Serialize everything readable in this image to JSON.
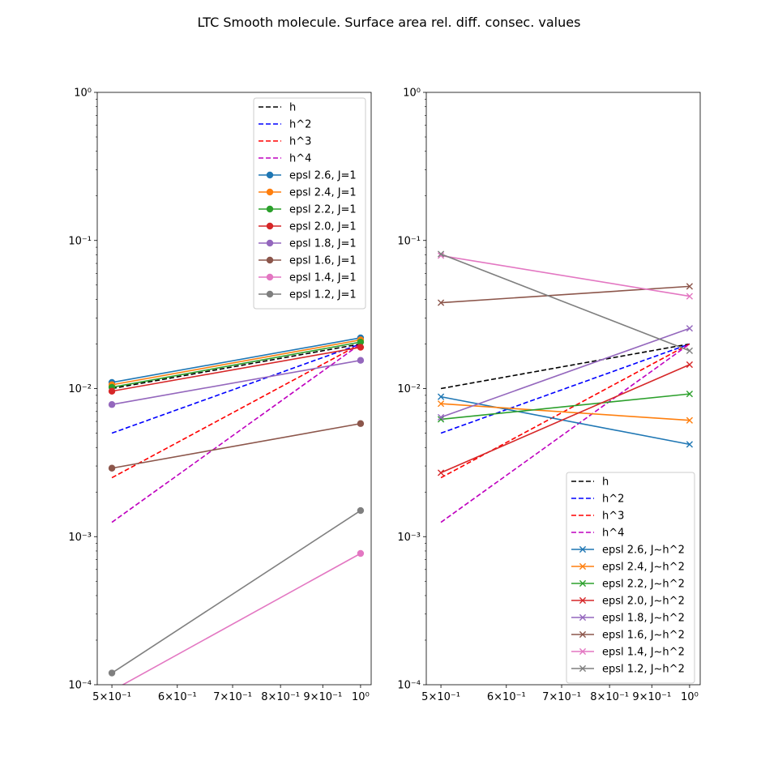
{
  "suptitle": "LTC Smooth molecule. Surface area rel. diff. consec. values",
  "chart_data": [
    {
      "type": "line",
      "xscale": "log",
      "yscale": "log",
      "xlim": [
        0.48,
        1.03
      ],
      "ylim": [
        0.0001,
        1
      ],
      "x": [
        0.5,
        1.0
      ],
      "x_tick_labels": [
        "5×10⁻¹",
        "6×10⁻¹",
        "7×10⁻¹",
        "8×10⁻¹",
        "9×10⁻¹",
        "10⁰"
      ],
      "x_ticks": [
        0.5,
        0.6,
        0.7,
        0.8,
        0.9,
        1.0
      ],
      "y_tick_labels": [
        "10⁻⁴",
        "10⁻³",
        "10⁻²",
        "10⁻¹",
        "10⁰"
      ],
      "y_ticks": [
        0.0001,
        0.001,
        0.01,
        0.1,
        1
      ],
      "legend_position": "top-right",
      "reference": [
        {
          "name": "h",
          "color": "#000000",
          "values": [
            0.01,
            0.02
          ]
        },
        {
          "name": "h^2",
          "color": "#0000ff",
          "values": [
            0.005,
            0.02
          ]
        },
        {
          "name": "h^3",
          "color": "#ff0000",
          "values": [
            0.0025,
            0.02
          ]
        },
        {
          "name": "h^4",
          "color": "#bf00bf",
          "values": [
            0.00125,
            0.02
          ]
        }
      ],
      "series": [
        {
          "name": "epsl 2.6, J=1",
          "color": "#1f77b4",
          "marker": "o",
          "values": [
            0.011,
            0.022
          ]
        },
        {
          "name": "epsl 2.4, J=1",
          "color": "#ff7f0e",
          "marker": "o",
          "values": [
            0.0106,
            0.0213
          ]
        },
        {
          "name": "epsl 2.2, J=1",
          "color": "#2ca02c",
          "marker": "o",
          "values": [
            0.0102,
            0.0206
          ]
        },
        {
          "name": "epsl 2.0, J=1",
          "color": "#d62728",
          "marker": "o",
          "values": [
            0.0096,
            0.019
          ]
        },
        {
          "name": "epsl 1.8, J=1",
          "color": "#9467bd",
          "marker": "o",
          "values": [
            0.0078,
            0.0155
          ]
        },
        {
          "name": "epsl 1.6, J=1",
          "color": "#8c564b",
          "marker": "o",
          "values": [
            0.0029,
            0.0058
          ]
        },
        {
          "name": "epsl 1.4, J=1",
          "color": "#e377c2",
          "marker": "o",
          "values": [
            9.1e-05,
            0.00077
          ]
        },
        {
          "name": "epsl 1.2, J=1",
          "color": "#7f7f7f",
          "marker": "o",
          "values": [
            0.00012,
            0.0015
          ]
        }
      ]
    },
    {
      "type": "line",
      "xscale": "log",
      "yscale": "log",
      "xlim": [
        0.48,
        1.03
      ],
      "ylim": [
        0.0001,
        1
      ],
      "x": [
        0.5,
        1.0
      ],
      "x_tick_labels": [
        "5×10⁻¹",
        "6×10⁻¹",
        "7×10⁻¹",
        "8×10⁻¹",
        "9×10⁻¹",
        "10⁰"
      ],
      "x_ticks": [
        0.5,
        0.6,
        0.7,
        0.8,
        0.9,
        1.0
      ],
      "y_tick_labels": [
        "10⁻⁴",
        "10⁻³",
        "10⁻²",
        "10⁻¹",
        "10⁰"
      ],
      "y_ticks": [
        0.0001,
        0.001,
        0.01,
        0.1,
        1
      ],
      "legend_position": "bottom-right",
      "reference": [
        {
          "name": "h",
          "color": "#000000",
          "values": [
            0.01,
            0.02
          ]
        },
        {
          "name": "h^2",
          "color": "#0000ff",
          "values": [
            0.005,
            0.02
          ]
        },
        {
          "name": "h^3",
          "color": "#ff0000",
          "values": [
            0.0025,
            0.02
          ]
        },
        {
          "name": "h^4",
          "color": "#bf00bf",
          "values": [
            0.00125,
            0.02
          ]
        }
      ],
      "series": [
        {
          "name": "epsl 2.6, J~h^2",
          "color": "#1f77b4",
          "marker": "x",
          "values": [
            0.0088,
            0.0042
          ]
        },
        {
          "name": "epsl 2.4, J~h^2",
          "color": "#ff7f0e",
          "marker": "x",
          "values": [
            0.0079,
            0.0061
          ]
        },
        {
          "name": "epsl 2.2, J~h^2",
          "color": "#2ca02c",
          "marker": "x",
          "values": [
            0.0062,
            0.0092
          ]
        },
        {
          "name": "epsl 2.0, J~h^2",
          "color": "#d62728",
          "marker": "x",
          "values": [
            0.0027,
            0.0145
          ]
        },
        {
          "name": "epsl 1.8, J~h^2",
          "color": "#9467bd",
          "marker": "x",
          "values": [
            0.0064,
            0.0255
          ]
        },
        {
          "name": "epsl 1.6, J~h^2",
          "color": "#8c564b",
          "marker": "x",
          "values": [
            0.038,
            0.049
          ]
        },
        {
          "name": "epsl 1.4, J~h^2",
          "color": "#e377c2",
          "marker": "x",
          "values": [
            0.079,
            0.042
          ]
        },
        {
          "name": "epsl 1.2, J~h^2",
          "color": "#7f7f7f",
          "marker": "x",
          "values": [
            0.081,
            0.018
          ]
        }
      ]
    }
  ]
}
